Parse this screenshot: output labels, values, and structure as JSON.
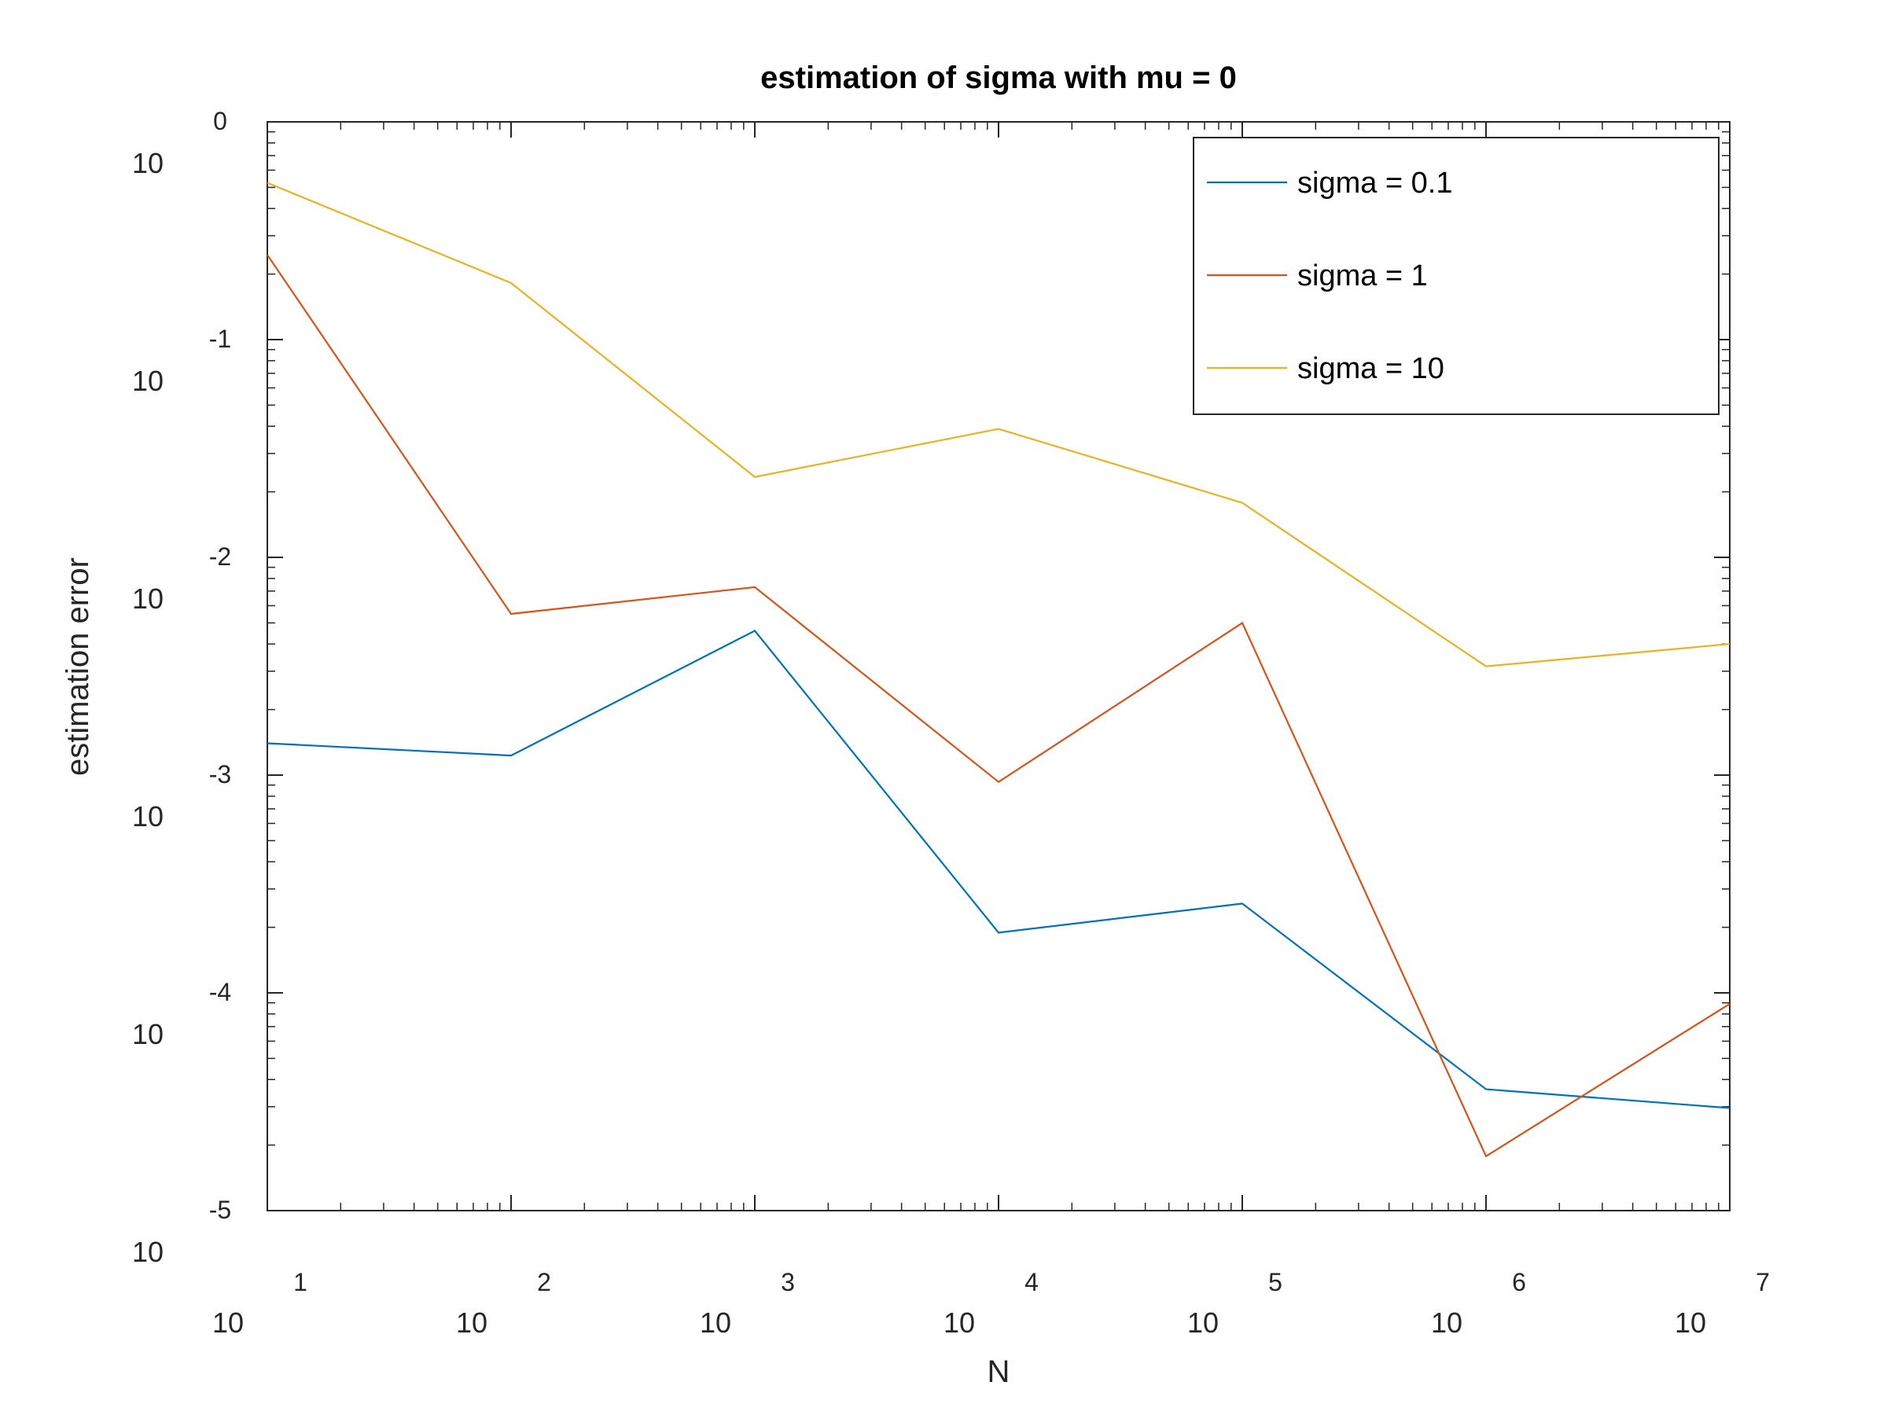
{
  "chart_data": {
    "type": "line",
    "title": "estimation of sigma with mu = 0",
    "xlabel": "N",
    "ylabel": "estimation error",
    "x_scale": "log",
    "y_scale": "log",
    "xlim": [
      10,
      10000000
    ],
    "ylim": [
      1e-05,
      1
    ],
    "x_ticks": [
      {
        "base": "10",
        "exp": "1"
      },
      {
        "base": "10",
        "exp": "2"
      },
      {
        "base": "10",
        "exp": "3"
      },
      {
        "base": "10",
        "exp": "4"
      },
      {
        "base": "10",
        "exp": "5"
      },
      {
        "base": "10",
        "exp": "6"
      },
      {
        "base": "10",
        "exp": "7"
      }
    ],
    "y_ticks": [
      {
        "base": "10",
        "exp": "0"
      },
      {
        "base": "10",
        "exp": "-1"
      },
      {
        "base": "10",
        "exp": "-2"
      },
      {
        "base": "10",
        "exp": "-3"
      },
      {
        "base": "10",
        "exp": "-4"
      },
      {
        "base": "10",
        "exp": "-5"
      }
    ],
    "x": [
      10,
      100,
      1000,
      10000,
      100000,
      1000000,
      10000000
    ],
    "series": [
      {
        "name": "sigma = 0.1",
        "color": "#0072bd",
        "values": [
          0.0014,
          0.00123,
          0.0046,
          0.000189,
          0.000257,
          3.61e-05,
          2.96e-05
        ]
      },
      {
        "name": "sigma = 1",
        "color": "#d95319",
        "values": [
          0.245,
          0.0055,
          0.0073,
          0.00093,
          0.005,
          1.778e-05,
          8.91e-05
        ]
      },
      {
        "name": "sigma = 10",
        "color": "#edb120",
        "values": [
          0.525,
          0.182,
          0.0234,
          0.0389,
          0.0178,
          0.00316,
          0.004
        ]
      }
    ],
    "legend_position": "top-right",
    "grid": false
  }
}
